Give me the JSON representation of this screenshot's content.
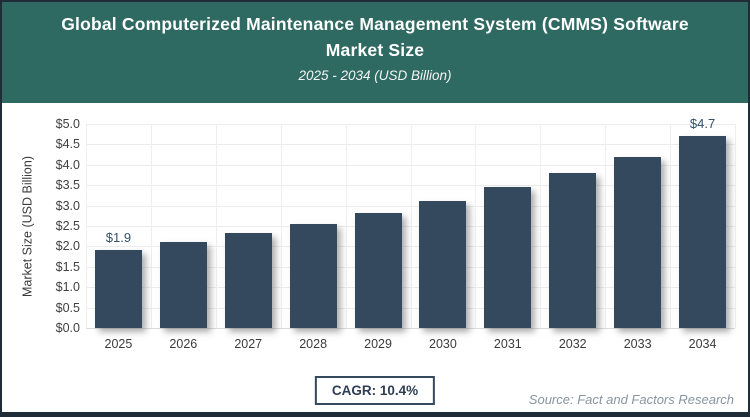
{
  "header": {
    "title_line1": "Global Computerized Maintenance Management System (CMMS) Software",
    "title_line2": "Market Size",
    "subtitle": "2025 - 2034 (USD Billion)"
  },
  "chart_data": {
    "type": "bar",
    "title": "Global Computerized Maintenance Management System (CMMS) Software Market Size",
    "subtitle": "2025 - 2034 (USD Billion)",
    "categories": [
      "2025",
      "2026",
      "2027",
      "2028",
      "2029",
      "2030",
      "2031",
      "2032",
      "2033",
      "2034"
    ],
    "values": [
      1.9,
      2.1,
      2.32,
      2.56,
      2.82,
      3.12,
      3.45,
      3.8,
      4.2,
      4.7
    ],
    "data_labels": [
      {
        "index": 0,
        "label": "$1.9"
      },
      {
        "index": 9,
        "label": "$4.7"
      }
    ],
    "xlabel": "",
    "ylabel": "Market Size (USD Billion)",
    "ylim": [
      0,
      5
    ],
    "ytick_labels": [
      "$0.0",
      "$0.5",
      "$1.0",
      "$1.5",
      "$2.0",
      "$2.5",
      "$3.0",
      "$3.5",
      "$4.0",
      "$4.5",
      "$5.0"
    ],
    "grid": true,
    "legend": "none",
    "bar_color": "#35495e"
  },
  "footer": {
    "cagr_label": "CAGR: 10.4%",
    "source": "Source: Fact and Factors Research"
  },
  "colors": {
    "header_bg": "#2f6a62",
    "bar": "#35495e",
    "value_label": "#33506b",
    "frame_border": "#202d39"
  }
}
